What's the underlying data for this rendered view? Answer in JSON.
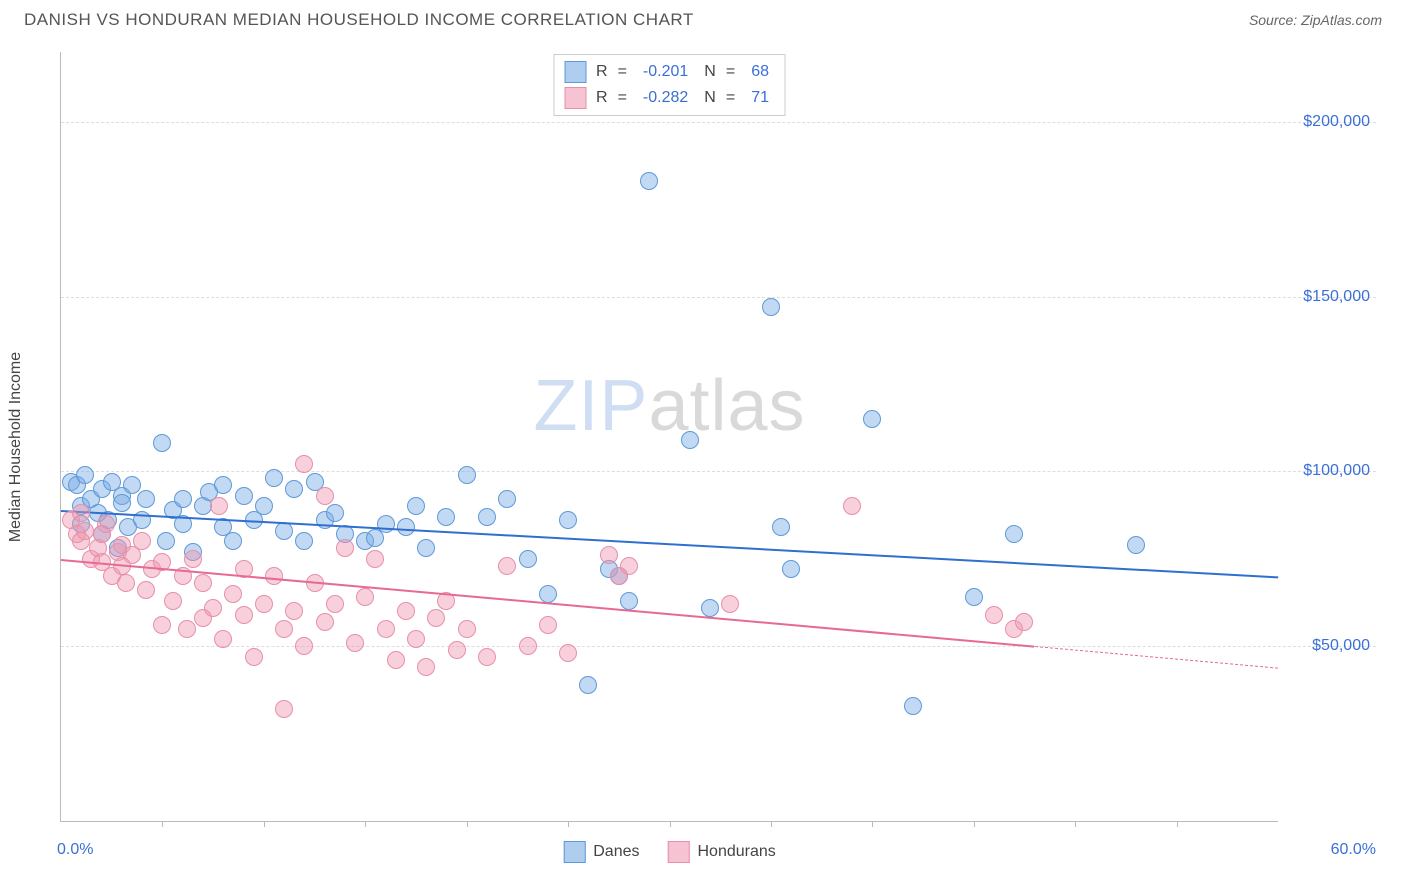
{
  "header": {
    "title": "DANISH VS HONDURAN MEDIAN HOUSEHOLD INCOME CORRELATION CHART",
    "source_prefix": "Source: ",
    "source_name": "ZipAtlas.com"
  },
  "chart": {
    "type": "scatter",
    "ylabel": "Median Household Income",
    "xlim": [
      0,
      60
    ],
    "ylim": [
      0,
      220000
    ],
    "x_unit": "%",
    "y_ticks": [
      50000,
      100000,
      150000,
      200000
    ],
    "y_tick_labels": [
      "$50,000",
      "$100,000",
      "$150,000",
      "$200,000"
    ],
    "x_minor_ticks": [
      5,
      10,
      15,
      20,
      25,
      30,
      35,
      40,
      45,
      50,
      55
    ],
    "x_lim_labels": [
      "0.0%",
      "60.0%"
    ],
    "background_color": "#ffffff",
    "grid_color": "#dddddd",
    "axis_color": "#bbbbbb",
    "label_color": "#444444",
    "tick_label_color": "#3a6fd8",
    "marker_radius": 9,
    "marker_stroke_width": 1.5,
    "watermark": {
      "text_a": "ZIP",
      "text_b": "atlas"
    },
    "series": [
      {
        "name": "Danes",
        "fill": "rgba(120,170,230,0.45)",
        "stroke": "#5f99d8",
        "swatch_fill": "#aecdef",
        "swatch_border": "#5f99d8",
        "trend_color": "#2e6fd0",
        "trend": {
          "x1": 0,
          "y1": 89000,
          "x2": 60,
          "y2": 70000,
          "solid_until_x": 60
        },
        "R": "-0.201",
        "N": "68",
        "points": [
          [
            0.5,
            97000
          ],
          [
            0.8,
            96000
          ],
          [
            1,
            90000
          ],
          [
            1,
            85000
          ],
          [
            1.2,
            99000
          ],
          [
            1.5,
            92000
          ],
          [
            1.8,
            88000
          ],
          [
            2,
            95000
          ],
          [
            2,
            82000
          ],
          [
            2.3,
            86000
          ],
          [
            2.5,
            97000
          ],
          [
            2.8,
            78000
          ],
          [
            3,
            93000
          ],
          [
            3,
            91000
          ],
          [
            3.3,
            84000
          ],
          [
            3.5,
            96000
          ],
          [
            4,
            86000
          ],
          [
            4.2,
            92000
          ],
          [
            5,
            108000
          ],
          [
            5.2,
            80000
          ],
          [
            5.5,
            89000
          ],
          [
            6,
            85000
          ],
          [
            6,
            92000
          ],
          [
            6.5,
            77000
          ],
          [
            7,
            90000
          ],
          [
            7.3,
            94000
          ],
          [
            8,
            84000
          ],
          [
            8,
            96000
          ],
          [
            8.5,
            80000
          ],
          [
            9,
            93000
          ],
          [
            9.5,
            86000
          ],
          [
            10,
            90000
          ],
          [
            10.5,
            98000
          ],
          [
            11,
            83000
          ],
          [
            11.5,
            95000
          ],
          [
            12,
            80000
          ],
          [
            12.5,
            97000
          ],
          [
            13,
            86000
          ],
          [
            13.5,
            88000
          ],
          [
            14,
            82000
          ],
          [
            15,
            80000
          ],
          [
            15.5,
            81000
          ],
          [
            16,
            85000
          ],
          [
            17,
            84000
          ],
          [
            17.5,
            90000
          ],
          [
            18,
            78000
          ],
          [
            19,
            87000
          ],
          [
            20,
            99000
          ],
          [
            21,
            87000
          ],
          [
            22,
            92000
          ],
          [
            23,
            75000
          ],
          [
            24,
            65000
          ],
          [
            25,
            86000
          ],
          [
            26,
            39000
          ],
          [
            27,
            72000
          ],
          [
            27.5,
            70000
          ],
          [
            28,
            63000
          ],
          [
            29,
            183000
          ],
          [
            31,
            109000
          ],
          [
            32,
            61000
          ],
          [
            35,
            147000
          ],
          [
            35.5,
            84000
          ],
          [
            36,
            72000
          ],
          [
            40,
            115000
          ],
          [
            42,
            33000
          ],
          [
            45,
            64000
          ],
          [
            47,
            82000
          ],
          [
            53,
            79000
          ]
        ]
      },
      {
        "name": "Hondurans",
        "fill": "rgba(240,150,175,0.45)",
        "stroke": "#e78fab",
        "swatch_fill": "#f5c3d2",
        "swatch_border": "#e78fab",
        "trend_color": "#e66a93",
        "trend": {
          "x1": 0,
          "y1": 75000,
          "x2": 60,
          "y2": 44000,
          "solid_until_x": 48
        },
        "R": "-0.282",
        "N": "71",
        "points": [
          [
            0.5,
            86000
          ],
          [
            0.8,
            82000
          ],
          [
            1,
            88000
          ],
          [
            1,
            80000
          ],
          [
            1.2,
            83000
          ],
          [
            1.5,
            75000
          ],
          [
            1.8,
            78000
          ],
          [
            2,
            82000
          ],
          [
            2,
            74000
          ],
          [
            2.2,
            85000
          ],
          [
            2.5,
            70000
          ],
          [
            2.8,
            77000
          ],
          [
            3,
            79000
          ],
          [
            3,
            73000
          ],
          [
            3.2,
            68000
          ],
          [
            3.5,
            76000
          ],
          [
            4,
            80000
          ],
          [
            4.2,
            66000
          ],
          [
            4.5,
            72000
          ],
          [
            5,
            56000
          ],
          [
            5,
            74000
          ],
          [
            5.5,
            63000
          ],
          [
            6,
            70000
          ],
          [
            6.2,
            55000
          ],
          [
            6.5,
            75000
          ],
          [
            7,
            68000
          ],
          [
            7,
            58000
          ],
          [
            7.5,
            61000
          ],
          [
            7.8,
            90000
          ],
          [
            8,
            52000
          ],
          [
            8.5,
            65000
          ],
          [
            9,
            59000
          ],
          [
            9,
            72000
          ],
          [
            9.5,
            47000
          ],
          [
            10,
            62000
          ],
          [
            10.5,
            70000
          ],
          [
            11,
            32000
          ],
          [
            11,
            55000
          ],
          [
            11.5,
            60000
          ],
          [
            12,
            102000
          ],
          [
            12,
            50000
          ],
          [
            12.5,
            68000
          ],
          [
            13,
            93000
          ],
          [
            13,
            57000
          ],
          [
            13.5,
            62000
          ],
          [
            14,
            78000
          ],
          [
            14.5,
            51000
          ],
          [
            15,
            64000
          ],
          [
            15.5,
            75000
          ],
          [
            16,
            55000
          ],
          [
            16.5,
            46000
          ],
          [
            17,
            60000
          ],
          [
            17.5,
            52000
          ],
          [
            18,
            44000
          ],
          [
            18.5,
            58000
          ],
          [
            19,
            63000
          ],
          [
            19.5,
            49000
          ],
          [
            20,
            55000
          ],
          [
            21,
            47000
          ],
          [
            22,
            73000
          ],
          [
            23,
            50000
          ],
          [
            24,
            56000
          ],
          [
            25,
            48000
          ],
          [
            27,
            76000
          ],
          [
            27.5,
            70000
          ],
          [
            28,
            73000
          ],
          [
            33,
            62000
          ],
          [
            39,
            90000
          ],
          [
            46,
            59000
          ],
          [
            47,
            55000
          ],
          [
            47.5,
            57000
          ]
        ]
      }
    ],
    "stat_box": {
      "r_label": "R",
      "n_label": "N",
      "eq": "="
    },
    "legend_labels": [
      "Danes",
      "Hondurans"
    ]
  }
}
